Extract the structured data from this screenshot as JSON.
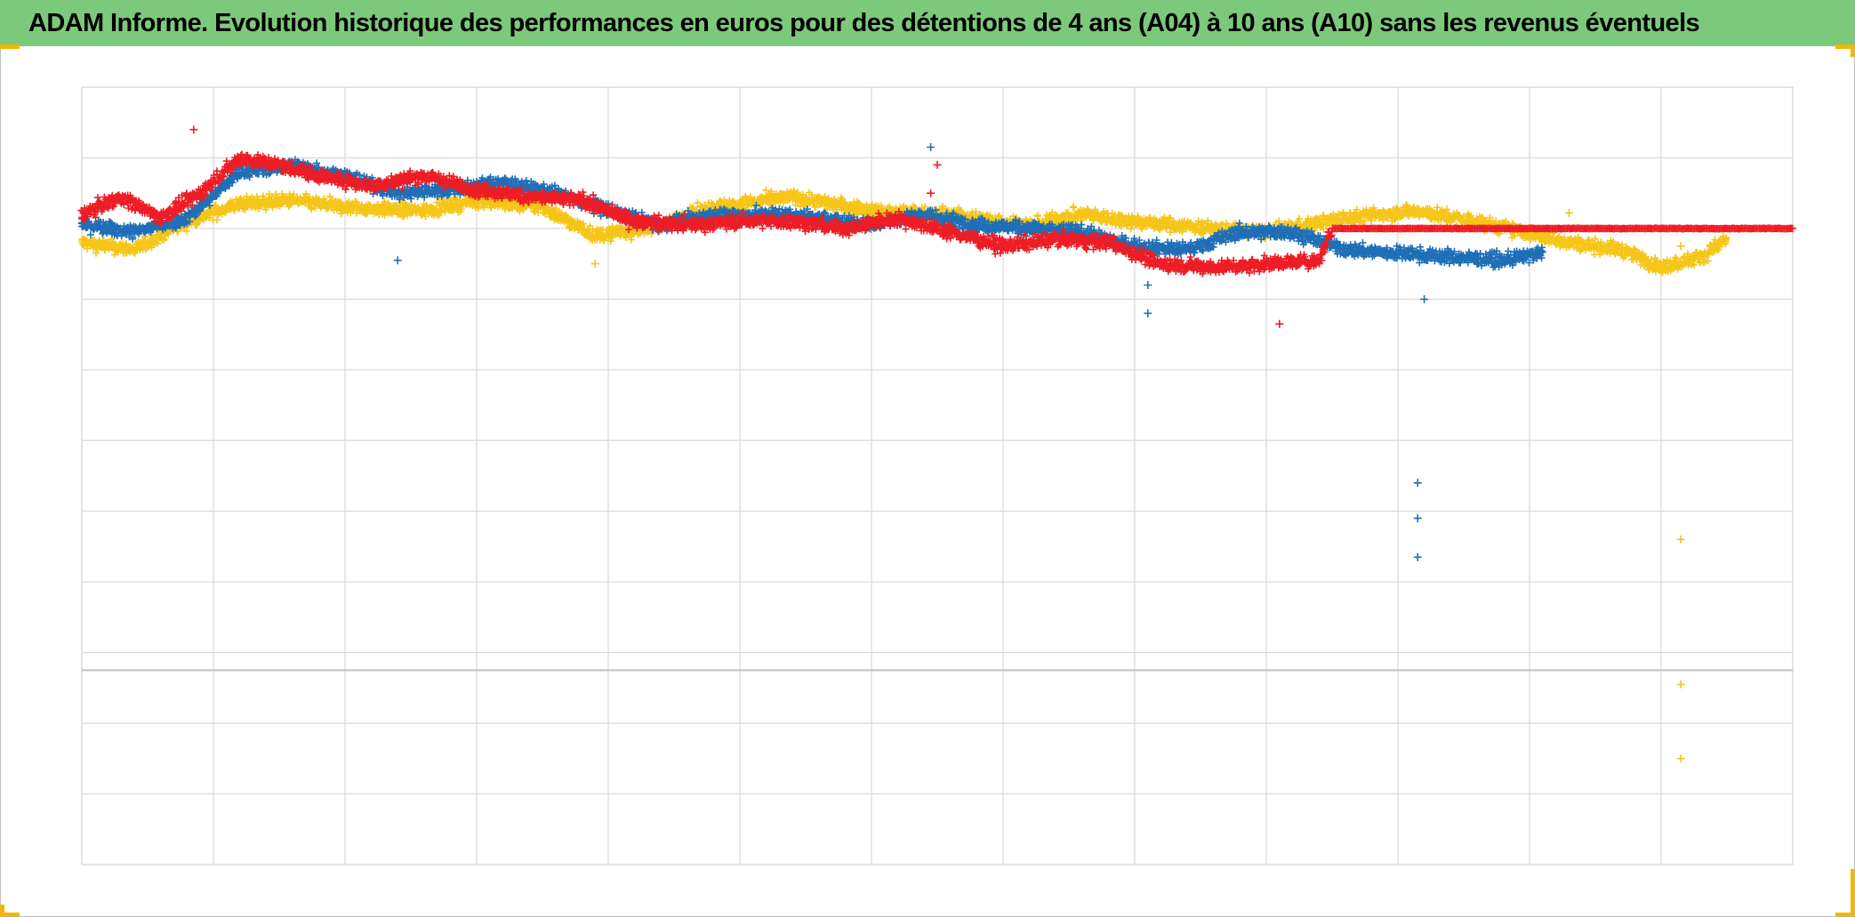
{
  "header": {
    "title": "ADAM Informe. Evolution historique des performances en euros pour des détentions de 4 ans (A04) à 10 ans (A10) sans les revenus éventuels",
    "background_color": "#7dc97b"
  },
  "chart_data": {
    "type": "scatter",
    "title": "ADAM Informe. Evolution historique des performances en euros pour des détentions de 4 ans (A04) à 10 ans (A10) sans les revenus éventuels",
    "xlabel": "",
    "ylabel": "",
    "xlim": [
      0,
      13
    ],
    "ylim": [
      -9,
      2
    ],
    "x_gridlines": 13,
    "y_gridlines": 11,
    "grid": true,
    "legend": "none",
    "marker": "plus",
    "series": [
      {
        "color": "#f5c518",
        "x_end": 12.5,
        "outliers": [
          [
            12.15,
            -4.4
          ],
          [
            12.15,
            -6.45
          ],
          [
            12.15,
            -7.5
          ],
          [
            11.3,
            0.22
          ],
          [
            12.15,
            -0.25
          ],
          [
            3.9,
            -0.5
          ]
        ],
        "trend": [
          [
            0,
            -0.2
          ],
          [
            0.4,
            -0.3
          ],
          [
            0.8,
            0.1
          ],
          [
            1.2,
            0.35
          ],
          [
            1.6,
            0.4
          ],
          [
            2,
            0.3
          ],
          [
            2.6,
            0.25
          ],
          [
            3,
            0.4
          ],
          [
            3.5,
            0.3
          ],
          [
            3.9,
            -0.1
          ],
          [
            4.3,
            0.0
          ],
          [
            4.8,
            0.3
          ],
          [
            5.4,
            0.45
          ],
          [
            6,
            0.25
          ],
          [
            6.6,
            0.2
          ],
          [
            7.2,
            0.05
          ],
          [
            7.6,
            0.2
          ],
          [
            8,
            0.1
          ],
          [
            8.6,
            0.0
          ],
          [
            9,
            -0.05
          ],
          [
            9.6,
            0.15
          ],
          [
            10.1,
            0.25
          ],
          [
            10.6,
            0.1
          ],
          [
            11.3,
            -0.2
          ],
          [
            11.7,
            -0.3
          ],
          [
            12.0,
            -0.55
          ],
          [
            12.3,
            -0.4
          ],
          [
            12.5,
            -0.15
          ]
        ]
      },
      {
        "color": "#1f6fb7",
        "x_end": 11.1,
        "outliers": [
          [
            10.15,
            -3.6
          ],
          [
            10.15,
            -4.1
          ],
          [
            10.15,
            -4.65
          ],
          [
            8.1,
            -1.2
          ],
          [
            8.1,
            -0.8
          ],
          [
            10.2,
            -1.0
          ],
          [
            6.45,
            1.15
          ],
          [
            2.4,
            -0.45
          ]
        ],
        "trend": [
          [
            0,
            0.05
          ],
          [
            0.4,
            -0.05
          ],
          [
            0.8,
            0.15
          ],
          [
            1.2,
            0.8
          ],
          [
            1.6,
            0.9
          ],
          [
            2,
            0.75
          ],
          [
            2.4,
            0.5
          ],
          [
            2.8,
            0.55
          ],
          [
            3.2,
            0.65
          ],
          [
            3.6,
            0.5
          ],
          [
            4,
            0.25
          ],
          [
            4.4,
            0.05
          ],
          [
            4.8,
            0.2
          ],
          [
            5.4,
            0.2
          ],
          [
            6,
            0.05
          ],
          [
            6.4,
            0.2
          ],
          [
            6.8,
            0.05
          ],
          [
            7.2,
            0.0
          ],
          [
            7.6,
            -0.05
          ],
          [
            8,
            -0.25
          ],
          [
            8.4,
            -0.3
          ],
          [
            8.8,
            -0.05
          ],
          [
            9.2,
            -0.05
          ],
          [
            9.6,
            -0.3
          ],
          [
            10,
            -0.35
          ],
          [
            10.4,
            -0.4
          ],
          [
            10.8,
            -0.45
          ],
          [
            11.1,
            -0.35
          ]
        ]
      },
      {
        "color": "#ee1c25",
        "x_end": 13,
        "outliers": [
          [
            0.85,
            1.4
          ],
          [
            6.5,
            0.9
          ],
          [
            9.1,
            -1.35
          ],
          [
            6.45,
            0.5
          ]
        ],
        "flat_from": 9.5,
        "flat_value": 0.0,
        "trend": [
          [
            0,
            0.2
          ],
          [
            0.3,
            0.45
          ],
          [
            0.6,
            0.15
          ],
          [
            0.9,
            0.5
          ],
          [
            1.2,
            1.0
          ],
          [
            1.5,
            0.9
          ],
          [
            1.8,
            0.75
          ],
          [
            2.2,
            0.6
          ],
          [
            2.6,
            0.75
          ],
          [
            3,
            0.55
          ],
          [
            3.4,
            0.45
          ],
          [
            3.8,
            0.4
          ],
          [
            4.2,
            0.1
          ],
          [
            4.6,
            0.05
          ],
          [
            5,
            0.1
          ],
          [
            5.4,
            0.1
          ],
          [
            5.8,
            0.0
          ],
          [
            6.2,
            0.15
          ],
          [
            6.6,
            -0.05
          ],
          [
            7,
            -0.25
          ],
          [
            7.4,
            -0.15
          ],
          [
            7.8,
            -0.2
          ],
          [
            8.2,
            -0.5
          ],
          [
            8.6,
            -0.55
          ],
          [
            9,
            -0.5
          ],
          [
            9.4,
            -0.45
          ],
          [
            9.5,
            0.0
          ]
        ]
      }
    ]
  }
}
